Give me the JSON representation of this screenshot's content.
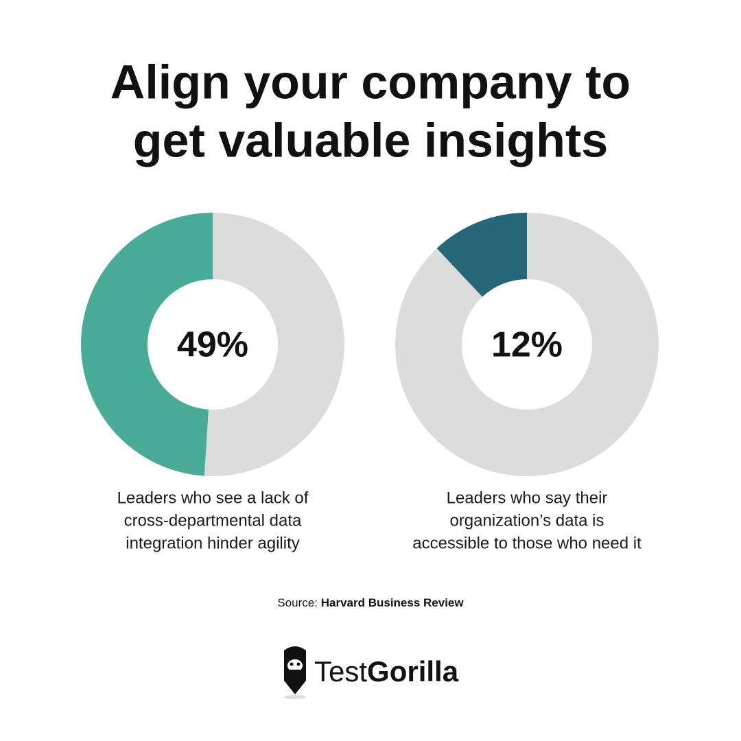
{
  "title": [
    "Align your company to",
    "get valuable insights"
  ],
  "chart_data": [
    {
      "type": "pie",
      "donut": true,
      "values": [
        49,
        51
      ],
      "value_labels": [
        "49%",
        null
      ],
      "colors": [
        "#4aab98",
        "#dcdcdc"
      ],
      "caption": [
        "Leaders who see a lack of",
        "cross-departmental data",
        "integration hinder agility"
      ]
    },
    {
      "type": "pie",
      "donut": true,
      "values": [
        12,
        88
      ],
      "value_labels": [
        "12%",
        null
      ],
      "colors": [
        "#256678",
        "#dcdcdc"
      ],
      "caption": [
        "Leaders who say their",
        "organization’s data is",
        "accessible to those who need it"
      ]
    }
  ],
  "source": {
    "label": "Source:",
    "name": "Harvard Business Review"
  },
  "brand": {
    "first": "Test",
    "second": "Gorilla"
  }
}
